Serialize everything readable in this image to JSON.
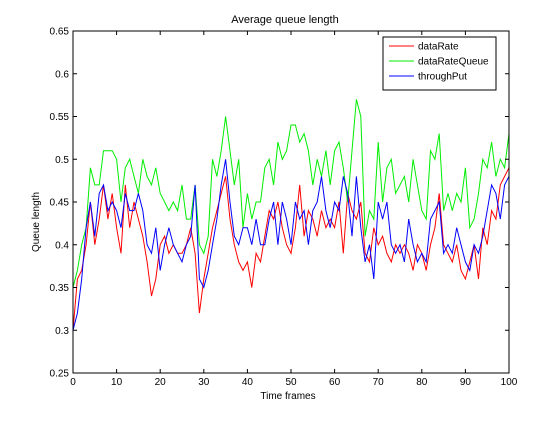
{
  "chart_data": {
    "type": "line",
    "title": "Average queue length",
    "xlabel": "Time frames",
    "ylabel": "Queue length",
    "xlim": [
      0,
      100
    ],
    "ylim": [
      0.25,
      0.65
    ],
    "xticks": [
      "0",
      "10",
      "20",
      "30",
      "40",
      "50",
      "60",
      "70",
      "80",
      "90",
      "100"
    ],
    "yticks": [
      "0.25",
      "0.3",
      "0.35",
      "0.4",
      "0.45",
      "0.5",
      "0.55",
      "0.6",
      "0.65"
    ],
    "grid": false,
    "legend_position": "top-right",
    "x": [
      0,
      1,
      2,
      3,
      4,
      5,
      6,
      7,
      8,
      9,
      10,
      11,
      12,
      13,
      14,
      15,
      16,
      17,
      18,
      19,
      20,
      21,
      22,
      23,
      24,
      25,
      26,
      27,
      28,
      29,
      30,
      31,
      32,
      33,
      34,
      35,
      36,
      37,
      38,
      39,
      40,
      41,
      42,
      43,
      44,
      45,
      46,
      47,
      48,
      49,
      50,
      51,
      52,
      53,
      54,
      55,
      56,
      57,
      58,
      59,
      60,
      61,
      62,
      63,
      64,
      65,
      66,
      67,
      68,
      69,
      70,
      71,
      72,
      73,
      74,
      75,
      76,
      77,
      78,
      79,
      80,
      81,
      82,
      83,
      84,
      85,
      86,
      87,
      88,
      89,
      90,
      91,
      92,
      93,
      94,
      95,
      96,
      97,
      98,
      99,
      100
    ],
    "series": [
      {
        "name": "dataRate",
        "color": "#ff0000",
        "values": [
          0.3,
          0.36,
          0.37,
          0.4,
          0.45,
          0.4,
          0.43,
          0.47,
          0.43,
          0.46,
          0.42,
          0.39,
          0.47,
          0.42,
          0.45,
          0.43,
          0.41,
          0.38,
          0.34,
          0.36,
          0.4,
          0.41,
          0.39,
          0.4,
          0.39,
          0.39,
          0.4,
          0.42,
          0.39,
          0.32,
          0.36,
          0.39,
          0.42,
          0.44,
          0.46,
          0.48,
          0.43,
          0.4,
          0.38,
          0.37,
          0.38,
          0.35,
          0.39,
          0.38,
          0.41,
          0.44,
          0.43,
          0.45,
          0.42,
          0.4,
          0.39,
          0.42,
          0.47,
          0.41,
          0.44,
          0.43,
          0.41,
          0.44,
          0.42,
          0.43,
          0.42,
          0.45,
          0.39,
          0.46,
          0.44,
          0.43,
          0.45,
          0.39,
          0.38,
          0.42,
          0.4,
          0.41,
          0.39,
          0.38,
          0.4,
          0.39,
          0.4,
          0.39,
          0.37,
          0.4,
          0.39,
          0.37,
          0.4,
          0.42,
          0.46,
          0.4,
          0.39,
          0.38,
          0.4,
          0.37,
          0.36,
          0.38,
          0.4,
          0.36,
          0.42,
          0.4,
          0.44,
          0.43,
          0.47,
          0.48,
          0.49
        ]
      },
      {
        "name": "dataRateQueue",
        "color": "#00ee00",
        "values": [
          0.35,
          0.37,
          0.4,
          0.42,
          0.49,
          0.47,
          0.47,
          0.51,
          0.51,
          0.51,
          0.5,
          0.45,
          0.49,
          0.5,
          0.48,
          0.46,
          0.5,
          0.48,
          0.47,
          0.49,
          0.46,
          0.45,
          0.44,
          0.45,
          0.44,
          0.47,
          0.43,
          0.43,
          0.47,
          0.4,
          0.39,
          0.41,
          0.5,
          0.48,
          0.51,
          0.55,
          0.51,
          0.47,
          0.5,
          0.42,
          0.46,
          0.43,
          0.45,
          0.45,
          0.49,
          0.5,
          0.47,
          0.52,
          0.5,
          0.51,
          0.54,
          0.54,
          0.52,
          0.53,
          0.51,
          0.47,
          0.5,
          0.48,
          0.51,
          0.47,
          0.51,
          0.52,
          0.49,
          0.45,
          0.51,
          0.57,
          0.55,
          0.41,
          0.44,
          0.43,
          0.52,
          0.45,
          0.49,
          0.5,
          0.46,
          0.47,
          0.48,
          0.45,
          0.5,
          0.47,
          0.44,
          0.43,
          0.51,
          0.5,
          0.53,
          0.44,
          0.46,
          0.44,
          0.46,
          0.45,
          0.49,
          0.42,
          0.43,
          0.46,
          0.5,
          0.49,
          0.52,
          0.48,
          0.5,
          0.49,
          0.53
        ]
      },
      {
        "name": "throughPut",
        "color": "#0000ff",
        "values": [
          0.3,
          0.32,
          0.36,
          0.42,
          0.45,
          0.41,
          0.46,
          0.47,
          0.44,
          0.45,
          0.44,
          0.42,
          0.46,
          0.44,
          0.44,
          0.46,
          0.44,
          0.4,
          0.39,
          0.42,
          0.37,
          0.4,
          0.42,
          0.4,
          0.39,
          0.38,
          0.4,
          0.41,
          0.47,
          0.36,
          0.35,
          0.37,
          0.4,
          0.43,
          0.47,
          0.5,
          0.45,
          0.41,
          0.4,
          0.42,
          0.42,
          0.4,
          0.43,
          0.4,
          0.4,
          0.43,
          0.45,
          0.4,
          0.45,
          0.43,
          0.4,
          0.45,
          0.43,
          0.44,
          0.4,
          0.44,
          0.45,
          0.48,
          0.44,
          0.42,
          0.45,
          0.44,
          0.48,
          0.46,
          0.41,
          0.48,
          0.42,
          0.38,
          0.4,
          0.36,
          0.45,
          0.43,
          0.45,
          0.4,
          0.39,
          0.4,
          0.38,
          0.43,
          0.4,
          0.38,
          0.39,
          0.38,
          0.43,
          0.44,
          0.45,
          0.39,
          0.4,
          0.39,
          0.42,
          0.4,
          0.38,
          0.37,
          0.4,
          0.39,
          0.41,
          0.44,
          0.47,
          0.46,
          0.43,
          0.47,
          0.48
        ]
      }
    ]
  }
}
